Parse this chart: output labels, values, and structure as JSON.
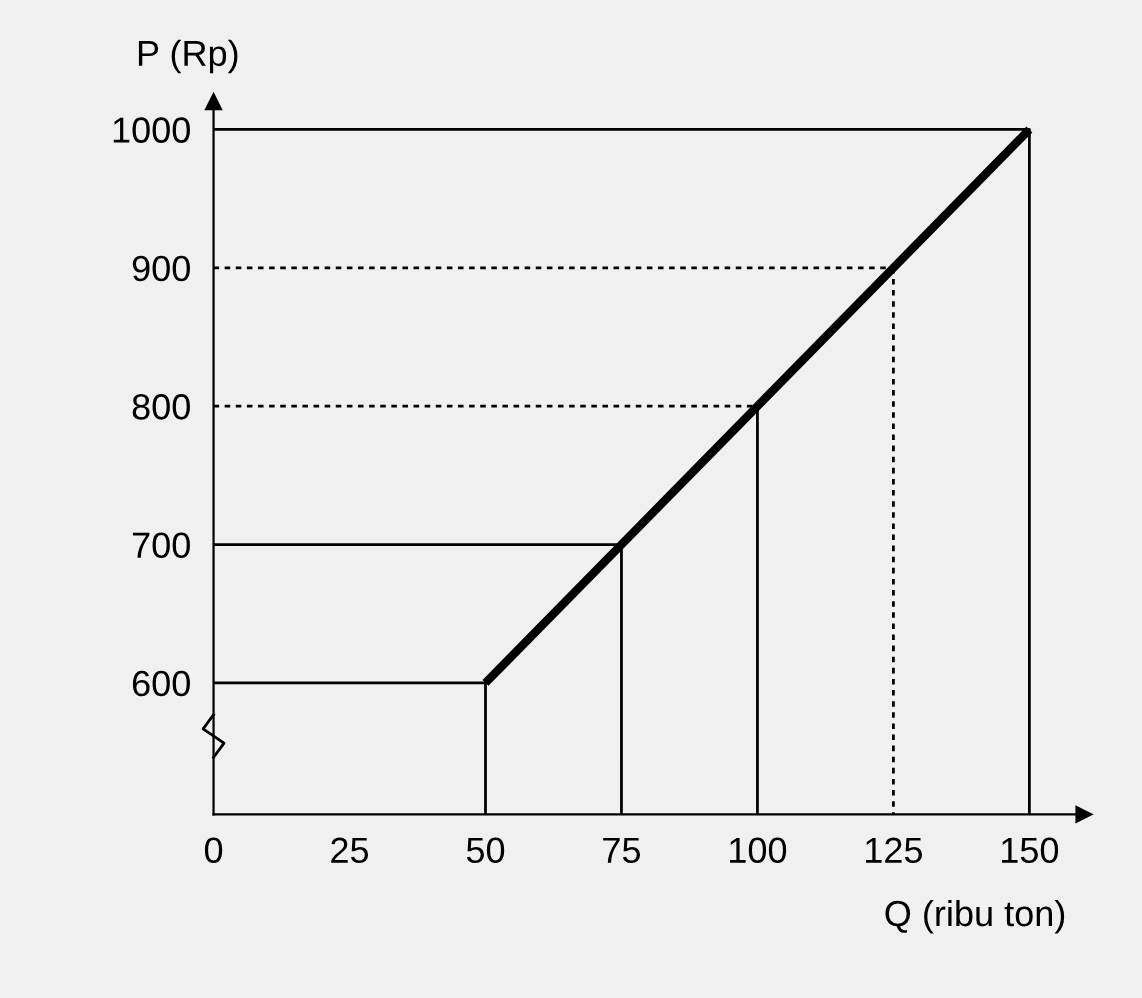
{
  "chart_data": {
    "type": "line",
    "xlabel": "Q (ribu ton)",
    "ylabel": "P (Rp)",
    "xlim": [
      0,
      160
    ],
    "ylim": [
      505,
      1020
    ],
    "xticks": [
      0,
      25,
      50,
      75,
      100,
      125,
      150
    ],
    "yticks": [
      600,
      700,
      800,
      900,
      1000
    ],
    "grid": false,
    "marker": "none",
    "series": [
      {
        "color": "#000000",
        "line_style": "solid",
        "x": [
          50,
          150
        ],
        "values": [
          600,
          1000
        ]
      },
      {
        "color": "#000000",
        "line_style": "solid",
        "x": [
          0,
          50,
          50
        ],
        "values": [
          600,
          600,
          505
        ]
      },
      {
        "color": "#000000",
        "line_style": "solid",
        "x": [
          0,
          75,
          75
        ],
        "values": [
          700,
          700,
          505
        ]
      },
      {
        "color": "#000000",
        "line_style": "dashed",
        "x": [
          0,
          100
        ],
        "values": [
          800,
          800
        ]
      },
      {
        "color": "#000000",
        "line_style": "solid",
        "x": [
          100,
          100
        ],
        "values": [
          800,
          505
        ]
      },
      {
        "color": "#000000",
        "line_style": "dashed",
        "x": [
          0,
          125
        ],
        "values": [
          900,
          900
        ]
      },
      {
        "color": "#000000",
        "line_style": "dashed",
        "x": [
          125,
          125
        ],
        "values": [
          900,
          505
        ]
      },
      {
        "color": "#000000",
        "line_style": "solid",
        "x": [
          0,
          150,
          150
        ],
        "values": [
          1000,
          1000,
          505
        ]
      }
    ]
  }
}
